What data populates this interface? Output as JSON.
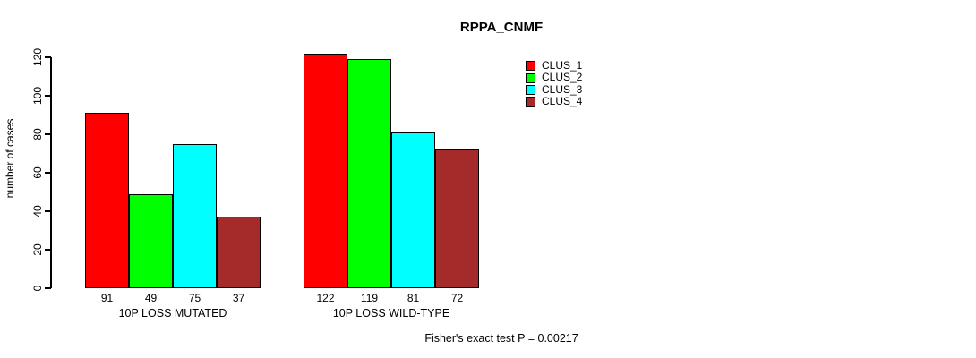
{
  "chart_data": {
    "type": "bar",
    "title": "RPPA_CNMF",
    "categories": [
      "10P LOSS MUTATED",
      "10P LOSS WILD-TYPE"
    ],
    "series": [
      {
        "name": "CLUS_1",
        "color": "#ff0000",
        "values": [
          91,
          122
        ]
      },
      {
        "name": "CLUS_2",
        "color": "#00ff00",
        "values": [
          49,
          119
        ]
      },
      {
        "name": "CLUS_3",
        "color": "#00ffff",
        "values": [
          75,
          81
        ]
      },
      {
        "name": "CLUS_4",
        "color": "#a52a2a",
        "values": [
          37,
          72
        ]
      }
    ],
    "xlabel": "",
    "ylabel": "number of cases",
    "ylim": [
      0,
      120
    ],
    "yticks": [
      0,
      20,
      40,
      60,
      80,
      100,
      120
    ],
    "bar_value_labels": [
      [
        91,
        49,
        75,
        37
      ],
      [
        122,
        119,
        81,
        72
      ]
    ],
    "legend": [
      "CLUS_1",
      "CLUS_2",
      "CLUS_3",
      "CLUS_4"
    ],
    "legend_position": "top-right",
    "grid": false,
    "annotation": "Fisher's exact test P = 0.00217",
    "bar_border_color": "#000000",
    "background_color": "#ffffff",
    "text_color": "#000000"
  }
}
